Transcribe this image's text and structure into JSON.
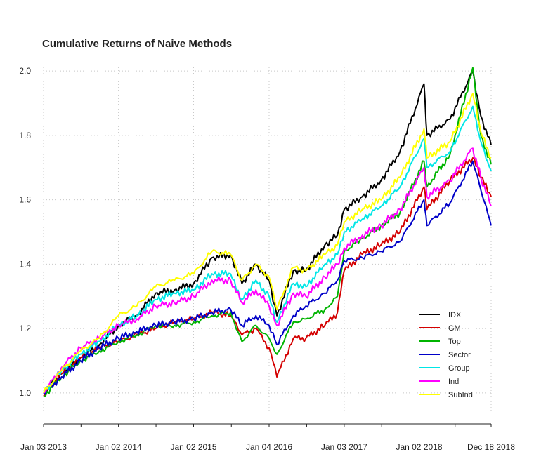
{
  "chart_data": {
    "type": "line",
    "title": "Cumulative Returns of Naive Methods",
    "xlabel": "",
    "ylabel": "",
    "x_ticks": [
      "Jan 03 2013",
      "Jan 02 2014",
      "Jan 02 2015",
      "Jan 04 2016",
      "Jan 03 2017",
      "Jan 02 2018",
      "Dec 18 2018"
    ],
    "xlim": [
      "2013-01-03",
      "2018-12-18"
    ],
    "ylim": [
      0.93,
      2.02
    ],
    "y_ticks": [
      1.0,
      1.2,
      1.4,
      1.6,
      1.8,
      2.0
    ],
    "grid": true,
    "legend_position": "bottom-right",
    "series": [
      {
        "name": "IDX",
        "color": "#000000",
        "points": [
          [
            "2013-01-03",
            1.0
          ],
          [
            "2013-04-01",
            1.06
          ],
          [
            "2013-07-01",
            1.11
          ],
          [
            "2013-10-01",
            1.15
          ],
          [
            "2014-01-02",
            1.21
          ],
          [
            "2014-04-01",
            1.24
          ],
          [
            "2014-07-01",
            1.31
          ],
          [
            "2014-10-01",
            1.32
          ],
          [
            "2015-01-02",
            1.34
          ],
          [
            "2015-04-01",
            1.42
          ],
          [
            "2015-07-01",
            1.43
          ],
          [
            "2015-08-25",
            1.34
          ],
          [
            "2015-11-01",
            1.4
          ],
          [
            "2016-01-04",
            1.35
          ],
          [
            "2016-02-11",
            1.24
          ],
          [
            "2016-05-01",
            1.38
          ],
          [
            "2016-07-01",
            1.38
          ],
          [
            "2016-10-01",
            1.46
          ],
          [
            "2016-12-01",
            1.49
          ],
          [
            "2017-01-03",
            1.57
          ],
          [
            "2017-04-01",
            1.61
          ],
          [
            "2017-07-01",
            1.66
          ],
          [
            "2017-10-01",
            1.75
          ],
          [
            "2018-01-26",
            1.96
          ],
          [
            "2018-02-09",
            1.8
          ],
          [
            "2018-06-01",
            1.85
          ],
          [
            "2018-09-20",
            2.0
          ],
          [
            "2018-10-29",
            1.86
          ],
          [
            "2018-12-18",
            1.77
          ]
        ]
      },
      {
        "name": "GM",
        "color": "#d40000",
        "points": [
          [
            "2013-01-03",
            0.99
          ],
          [
            "2013-04-01",
            1.06
          ],
          [
            "2013-07-01",
            1.11
          ],
          [
            "2013-10-01",
            1.14
          ],
          [
            "2014-01-02",
            1.16
          ],
          [
            "2014-04-01",
            1.18
          ],
          [
            "2014-07-01",
            1.2
          ],
          [
            "2014-10-01",
            1.22
          ],
          [
            "2015-01-02",
            1.23
          ],
          [
            "2015-04-01",
            1.25
          ],
          [
            "2015-07-01",
            1.24
          ],
          [
            "2015-08-25",
            1.18
          ],
          [
            "2015-11-01",
            1.2
          ],
          [
            "2016-01-04",
            1.14
          ],
          [
            "2016-02-11",
            1.05
          ],
          [
            "2016-05-01",
            1.17
          ],
          [
            "2016-07-01",
            1.17
          ],
          [
            "2016-10-01",
            1.21
          ],
          [
            "2016-12-01",
            1.25
          ],
          [
            "2017-01-03",
            1.38
          ],
          [
            "2017-04-01",
            1.43
          ],
          [
            "2017-07-01",
            1.46
          ],
          [
            "2017-10-01",
            1.5
          ],
          [
            "2018-01-26",
            1.64
          ],
          [
            "2018-02-09",
            1.57
          ],
          [
            "2018-06-01",
            1.66
          ],
          [
            "2018-09-20",
            1.73
          ],
          [
            "2018-10-29",
            1.67
          ],
          [
            "2018-12-18",
            1.61
          ]
        ]
      },
      {
        "name": "Top",
        "color": "#00b400",
        "points": [
          [
            "2013-01-03",
            0.99
          ],
          [
            "2013-04-01",
            1.05
          ],
          [
            "2013-07-01",
            1.1
          ],
          [
            "2013-10-01",
            1.13
          ],
          [
            "2014-01-02",
            1.16
          ],
          [
            "2014-04-01",
            1.18
          ],
          [
            "2014-07-01",
            1.21
          ],
          [
            "2014-10-01",
            1.21
          ],
          [
            "2015-01-02",
            1.22
          ],
          [
            "2015-04-01",
            1.24
          ],
          [
            "2015-07-01",
            1.25
          ],
          [
            "2015-08-25",
            1.16
          ],
          [
            "2015-11-01",
            1.21
          ],
          [
            "2016-01-04",
            1.17
          ],
          [
            "2016-02-11",
            1.12
          ],
          [
            "2016-05-01",
            1.22
          ],
          [
            "2016-07-01",
            1.23
          ],
          [
            "2016-10-01",
            1.26
          ],
          [
            "2016-12-01",
            1.3
          ],
          [
            "2017-01-03",
            1.44
          ],
          [
            "2017-04-01",
            1.48
          ],
          [
            "2017-07-01",
            1.52
          ],
          [
            "2017-10-01",
            1.56
          ],
          [
            "2018-01-26",
            1.72
          ],
          [
            "2018-02-09",
            1.64
          ],
          [
            "2018-06-01",
            1.74
          ],
          [
            "2018-09-20",
            2.01
          ],
          [
            "2018-10-29",
            1.8
          ],
          [
            "2018-12-18",
            1.71
          ]
        ]
      },
      {
        "name": "Sector",
        "color": "#0000c8",
        "points": [
          [
            "2013-01-03",
            1.0
          ],
          [
            "2013-04-01",
            1.05
          ],
          [
            "2013-07-01",
            1.1
          ],
          [
            "2013-10-01",
            1.14
          ],
          [
            "2014-01-02",
            1.17
          ],
          [
            "2014-04-01",
            1.19
          ],
          [
            "2014-07-01",
            1.21
          ],
          [
            "2014-10-01",
            1.22
          ],
          [
            "2015-01-02",
            1.23
          ],
          [
            "2015-04-01",
            1.25
          ],
          [
            "2015-07-01",
            1.26
          ],
          [
            "2015-08-25",
            1.21
          ],
          [
            "2015-11-01",
            1.24
          ],
          [
            "2016-01-04",
            1.21
          ],
          [
            "2016-02-11",
            1.15
          ],
          [
            "2016-05-01",
            1.24
          ],
          [
            "2016-07-01",
            1.27
          ],
          [
            "2016-10-01",
            1.31
          ],
          [
            "2016-12-01",
            1.35
          ],
          [
            "2017-01-03",
            1.41
          ],
          [
            "2017-04-01",
            1.42
          ],
          [
            "2017-07-01",
            1.44
          ],
          [
            "2017-10-01",
            1.47
          ],
          [
            "2018-01-26",
            1.6
          ],
          [
            "2018-02-09",
            1.52
          ],
          [
            "2018-06-01",
            1.59
          ],
          [
            "2018-09-20",
            1.72
          ],
          [
            "2018-10-29",
            1.63
          ],
          [
            "2018-12-18",
            1.52
          ]
        ]
      },
      {
        "name": "Group",
        "color": "#00e6e6",
        "points": [
          [
            "2013-01-03",
            1.0
          ],
          [
            "2013-04-01",
            1.07
          ],
          [
            "2013-07-01",
            1.12
          ],
          [
            "2013-10-01",
            1.16
          ],
          [
            "2014-01-02",
            1.21
          ],
          [
            "2014-04-01",
            1.24
          ],
          [
            "2014-07-01",
            1.29
          ],
          [
            "2014-10-01",
            1.31
          ],
          [
            "2015-01-02",
            1.32
          ],
          [
            "2015-04-01",
            1.37
          ],
          [
            "2015-07-01",
            1.37
          ],
          [
            "2015-08-25",
            1.29
          ],
          [
            "2015-11-01",
            1.35
          ],
          [
            "2016-01-04",
            1.3
          ],
          [
            "2016-02-11",
            1.22
          ],
          [
            "2016-05-01",
            1.34
          ],
          [
            "2016-07-01",
            1.33
          ],
          [
            "2016-10-01",
            1.4
          ],
          [
            "2016-12-01",
            1.43
          ],
          [
            "2017-01-03",
            1.5
          ],
          [
            "2017-04-01",
            1.54
          ],
          [
            "2017-07-01",
            1.58
          ],
          [
            "2017-10-01",
            1.64
          ],
          [
            "2018-01-26",
            1.79
          ],
          [
            "2018-02-09",
            1.7
          ],
          [
            "2018-06-01",
            1.75
          ],
          [
            "2018-09-20",
            1.89
          ],
          [
            "2018-10-29",
            1.78
          ],
          [
            "2018-12-18",
            1.69
          ]
        ]
      },
      {
        "name": "Ind",
        "color": "#ff00ff",
        "points": [
          [
            "2013-01-03",
            1.0
          ],
          [
            "2013-04-01",
            1.08
          ],
          [
            "2013-07-01",
            1.14
          ],
          [
            "2013-10-01",
            1.17
          ],
          [
            "2014-01-02",
            1.21
          ],
          [
            "2014-04-01",
            1.23
          ],
          [
            "2014-07-01",
            1.27
          ],
          [
            "2014-10-01",
            1.28
          ],
          [
            "2015-01-02",
            1.3
          ],
          [
            "2015-04-01",
            1.35
          ],
          [
            "2015-07-01",
            1.35
          ],
          [
            "2015-08-25",
            1.28
          ],
          [
            "2015-11-01",
            1.32
          ],
          [
            "2016-01-04",
            1.27
          ],
          [
            "2016-02-11",
            1.21
          ],
          [
            "2016-05-01",
            1.31
          ],
          [
            "2016-07-01",
            1.3
          ],
          [
            "2016-10-01",
            1.36
          ],
          [
            "2016-12-01",
            1.4
          ],
          [
            "2017-01-03",
            1.45
          ],
          [
            "2017-04-01",
            1.49
          ],
          [
            "2017-07-01",
            1.52
          ],
          [
            "2017-10-01",
            1.57
          ],
          [
            "2018-01-26",
            1.7
          ],
          [
            "2018-02-09",
            1.61
          ],
          [
            "2018-06-01",
            1.66
          ],
          [
            "2018-09-20",
            1.76
          ],
          [
            "2018-10-29",
            1.67
          ],
          [
            "2018-12-18",
            1.58
          ]
        ]
      },
      {
        "name": "SubInd",
        "color": "#ffff00",
        "points": [
          [
            "2013-01-03",
            1.0
          ],
          [
            "2013-04-01",
            1.07
          ],
          [
            "2013-07-01",
            1.13
          ],
          [
            "2013-10-01",
            1.17
          ],
          [
            "2014-01-02",
            1.24
          ],
          [
            "2014-04-01",
            1.27
          ],
          [
            "2014-07-01",
            1.33
          ],
          [
            "2014-10-01",
            1.35
          ],
          [
            "2015-01-02",
            1.37
          ],
          [
            "2015-04-01",
            1.44
          ],
          [
            "2015-07-01",
            1.43
          ],
          [
            "2015-08-25",
            1.35
          ],
          [
            "2015-11-01",
            1.4
          ],
          [
            "2016-01-04",
            1.36
          ],
          [
            "2016-02-11",
            1.26
          ],
          [
            "2016-05-01",
            1.39
          ],
          [
            "2016-07-01",
            1.38
          ],
          [
            "2016-10-01",
            1.43
          ],
          [
            "2016-12-01",
            1.46
          ],
          [
            "2017-01-03",
            1.53
          ],
          [
            "2017-04-01",
            1.57
          ],
          [
            "2017-07-01",
            1.6
          ],
          [
            "2017-10-01",
            1.67
          ],
          [
            "2018-01-26",
            1.82
          ],
          [
            "2018-02-09",
            1.73
          ],
          [
            "2018-06-01",
            1.78
          ],
          [
            "2018-09-20",
            1.93
          ],
          [
            "2018-10-29",
            1.81
          ],
          [
            "2018-12-18",
            1.73
          ]
        ]
      }
    ]
  }
}
